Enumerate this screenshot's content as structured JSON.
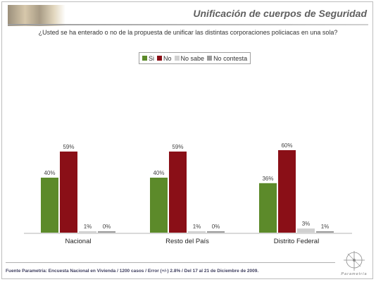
{
  "header": {
    "title": "Unificación de cuerpos de Seguridad"
  },
  "colors": {
    "si": "#5c8a2a",
    "no": "#8a0f17",
    "no_sabe": "#d0d0d0",
    "no_contesta": "#9a9a9a"
  },
  "chart_data": {
    "type": "bar",
    "title": "¿Usted se ha enterado o no de la propuesta de unificar las distintas corporaciones policiacas en una sola?",
    "categories": [
      "Nacional",
      "Resto del País",
      "Distrito Federal"
    ],
    "series": [
      {
        "name": "Si",
        "values": [
          40,
          40,
          36
        ],
        "labels": [
          "40%",
          "40%",
          "36%"
        ],
        "color": "#5c8a2a"
      },
      {
        "name": "No",
        "values": [
          59,
          59,
          60
        ],
        "labels": [
          "59%",
          "59%",
          "60%"
        ],
        "color": "#8a0f17"
      },
      {
        "name": "No sabe",
        "values": [
          1,
          1,
          3
        ],
        "labels": [
          "1%",
          "1%",
          "3%"
        ],
        "color": "#d0d0d0"
      },
      {
        "name": "No contesta",
        "values": [
          0,
          0,
          1
        ],
        "labels": [
          "0%",
          "0%",
          "1%"
        ],
        "color": "#9a9a9a"
      }
    ],
    "ylim": [
      0,
      100
    ],
    "grid": false,
    "legend_position": "top-center"
  },
  "footer": {
    "source": "Fuente Parametría: Encuesta Nacional en Vivienda / 1200 casos / Error (+/-) 2.8% / Del 17 al 21 de Diciembre de 2009."
  },
  "brand": {
    "name": "Parametría",
    "icon": "parametria-logo-icon"
  }
}
